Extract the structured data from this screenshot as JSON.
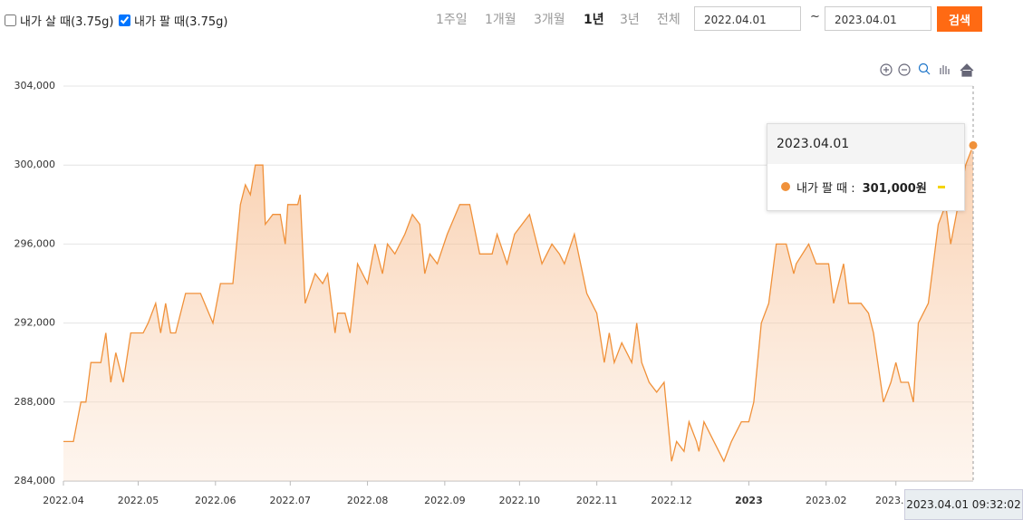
{
  "controls": {
    "checkboxes": [
      {
        "label": "내가 살 때(3.75g)",
        "checked": false
      },
      {
        "label": "내가 팔 때(3.75g)",
        "checked": true
      }
    ],
    "periods": [
      "1주일",
      "1개월",
      "3개월",
      "1년",
      "3년",
      "전체"
    ],
    "active_period": "1년",
    "start_date": "2022.04.01",
    "separator": "~",
    "end_date": "2023.04.01",
    "search": "검색"
  },
  "chart_data": {
    "type": "area",
    "xlim": [
      "2022.04.01",
      "2023.04.01"
    ],
    "xticks": [
      {
        "value": "2022.04.01",
        "label": "2022.04"
      },
      {
        "value": "2022.05.01",
        "label": "2022.05"
      },
      {
        "value": "2022.06.01",
        "label": "2022.06"
      },
      {
        "value": "2022.07.01",
        "label": "2022.07"
      },
      {
        "value": "2022.08.01",
        "label": "2022.08"
      },
      {
        "value": "2022.09.01",
        "label": "2022.09"
      },
      {
        "value": "2022.10.01",
        "label": "2022.10"
      },
      {
        "value": "2022.11.01",
        "label": "2022.11"
      },
      {
        "value": "2022.12.01",
        "label": "2022.12"
      },
      {
        "value": "2023.01.01",
        "label": "2023"
      },
      {
        "value": "2023.02.01",
        "label": "2023.02"
      },
      {
        "value": "2023.03.01",
        "label": "2023.03"
      }
    ],
    "ylim": [
      284000,
      304000
    ],
    "yticks": [
      {
        "value": 284000,
        "label": "284,000"
      },
      {
        "value": 288000,
        "label": "288,000"
      },
      {
        "value": 292000,
        "label": "292,000"
      },
      {
        "value": 296000,
        "label": "296,000"
      },
      {
        "value": 300000,
        "label": "300,000"
      },
      {
        "value": 304000,
        "label": "304,000"
      }
    ],
    "grid": true,
    "x": [
      "2022.04.01",
      "2022.04.05",
      "2022.04.08",
      "2022.04.10",
      "2022.04.12",
      "2022.04.16",
      "2022.04.18",
      "2022.04.20",
      "2022.04.22",
      "2022.04.25",
      "2022.04.28",
      "2022.05.03",
      "2022.05.05",
      "2022.05.08",
      "2022.05.10",
      "2022.05.12",
      "2022.05.14",
      "2022.05.16",
      "2022.05.20",
      "2022.05.26",
      "2022.05.31",
      "2022.06.03",
      "2022.06.08",
      "2022.06.11",
      "2022.06.13",
      "2022.06.15",
      "2022.06.17",
      "2022.06.20",
      "2022.06.21",
      "2022.06.24",
      "2022.06.27",
      "2022.06.29",
      "2022.06.30",
      "2022.07.04",
      "2022.07.05",
      "2022.07.07",
      "2022.07.11",
      "2022.07.14",
      "2022.07.16",
      "2022.07.19",
      "2022.07.20",
      "2022.07.23",
      "2022.07.25",
      "2022.07.28",
      "2022.08.01",
      "2022.08.04",
      "2022.08.07",
      "2022.08.09",
      "2022.08.12",
      "2022.08.16",
      "2022.08.19",
      "2022.08.22",
      "2022.08.24",
      "2022.08.26",
      "2022.08.29",
      "2022.09.02",
      "2022.09.07",
      "2022.09.11",
      "2022.09.15",
      "2022.09.20",
      "2022.09.22",
      "2022.09.26",
      "2022.09.29",
      "2022.10.05",
      "2022.10.07",
      "2022.10.10",
      "2022.10.14",
      "2022.10.17",
      "2022.10.19",
      "2022.10.23",
      "2022.10.28",
      "2022.11.01",
      "2022.11.04",
      "2022.11.06",
      "2022.11.08",
      "2022.11.11",
      "2022.11.15",
      "2022.11.17",
      "2022.11.19",
      "2022.11.22",
      "2022.11.25",
      "2022.11.28",
      "2022.12.01",
      "2022.12.03",
      "2022.12.06",
      "2022.12.08",
      "2022.12.11",
      "2022.12.12",
      "2022.12.14",
      "2022.12.18",
      "2022.12.20",
      "2022.12.22",
      "2022.12.25",
      "2022.12.29",
      "2023.01.01",
      "2023.01.03",
      "2023.01.06",
      "2023.01.09",
      "2023.01.12",
      "2023.01.16",
      "2023.01.19",
      "2023.01.20",
      "2023.01.25",
      "2023.01.28",
      "2023.02.02",
      "2023.02.04",
      "2023.02.08",
      "2023.02.10",
      "2023.02.15",
      "2023.02.18",
      "2023.02.20",
      "2023.02.24",
      "2023.02.27",
      "2023.03.01",
      "2023.03.03",
      "2023.03.06",
      "2023.03.08",
      "2023.03.10",
      "2023.03.14",
      "2023.03.18",
      "2023.03.21",
      "2023.03.23",
      "2023.03.26",
      "2023.03.29",
      "2023.04.01"
    ],
    "series": [
      {
        "name": "내가 팔 때",
        "color": "#f0913a",
        "values": [
          286000,
          286000,
          288000,
          288000,
          290000,
          290000,
          291500,
          289000,
          290500,
          289000,
          291500,
          291500,
          292000,
          293000,
          291500,
          293000,
          291500,
          291500,
          293500,
          293500,
          292000,
          294000,
          294000,
          298000,
          299000,
          298500,
          300000,
          300000,
          297000,
          297500,
          297500,
          296000,
          298000,
          298000,
          298500,
          293000,
          294500,
          294000,
          294500,
          291500,
          292500,
          292500,
          291500,
          295000,
          294000,
          296000,
          294500,
          296000,
          295500,
          296500,
          297500,
          297000,
          294500,
          295500,
          295000,
          296500,
          298000,
          298000,
          295500,
          295500,
          296500,
          295000,
          296500,
          297500,
          296500,
          295000,
          296000,
          295500,
          295000,
          296500,
          293500,
          292500,
          290000,
          291500,
          290000,
          291000,
          290000,
          292000,
          290000,
          289000,
          288500,
          289000,
          285000,
          286000,
          285500,
          287000,
          286000,
          285500,
          287000,
          286000,
          285500,
          285000,
          286000,
          287000,
          287000,
          288000,
          292000,
          293000,
          296000,
          296000,
          294500,
          295000,
          296000,
          295000,
          295000,
          293000,
          295000,
          293000,
          293000,
          292500,
          291500,
          288000,
          289000,
          290000,
          289000,
          289000,
          288000,
          292000,
          293000,
          297000,
          298000,
          296000,
          298000,
          300000,
          301000
        ]
      }
    ],
    "tooltip": {
      "x": "2023.04.01",
      "value": 301000,
      "label": "301,000원"
    },
    "crosshair_label": "2023.04.01 09:32:02"
  }
}
